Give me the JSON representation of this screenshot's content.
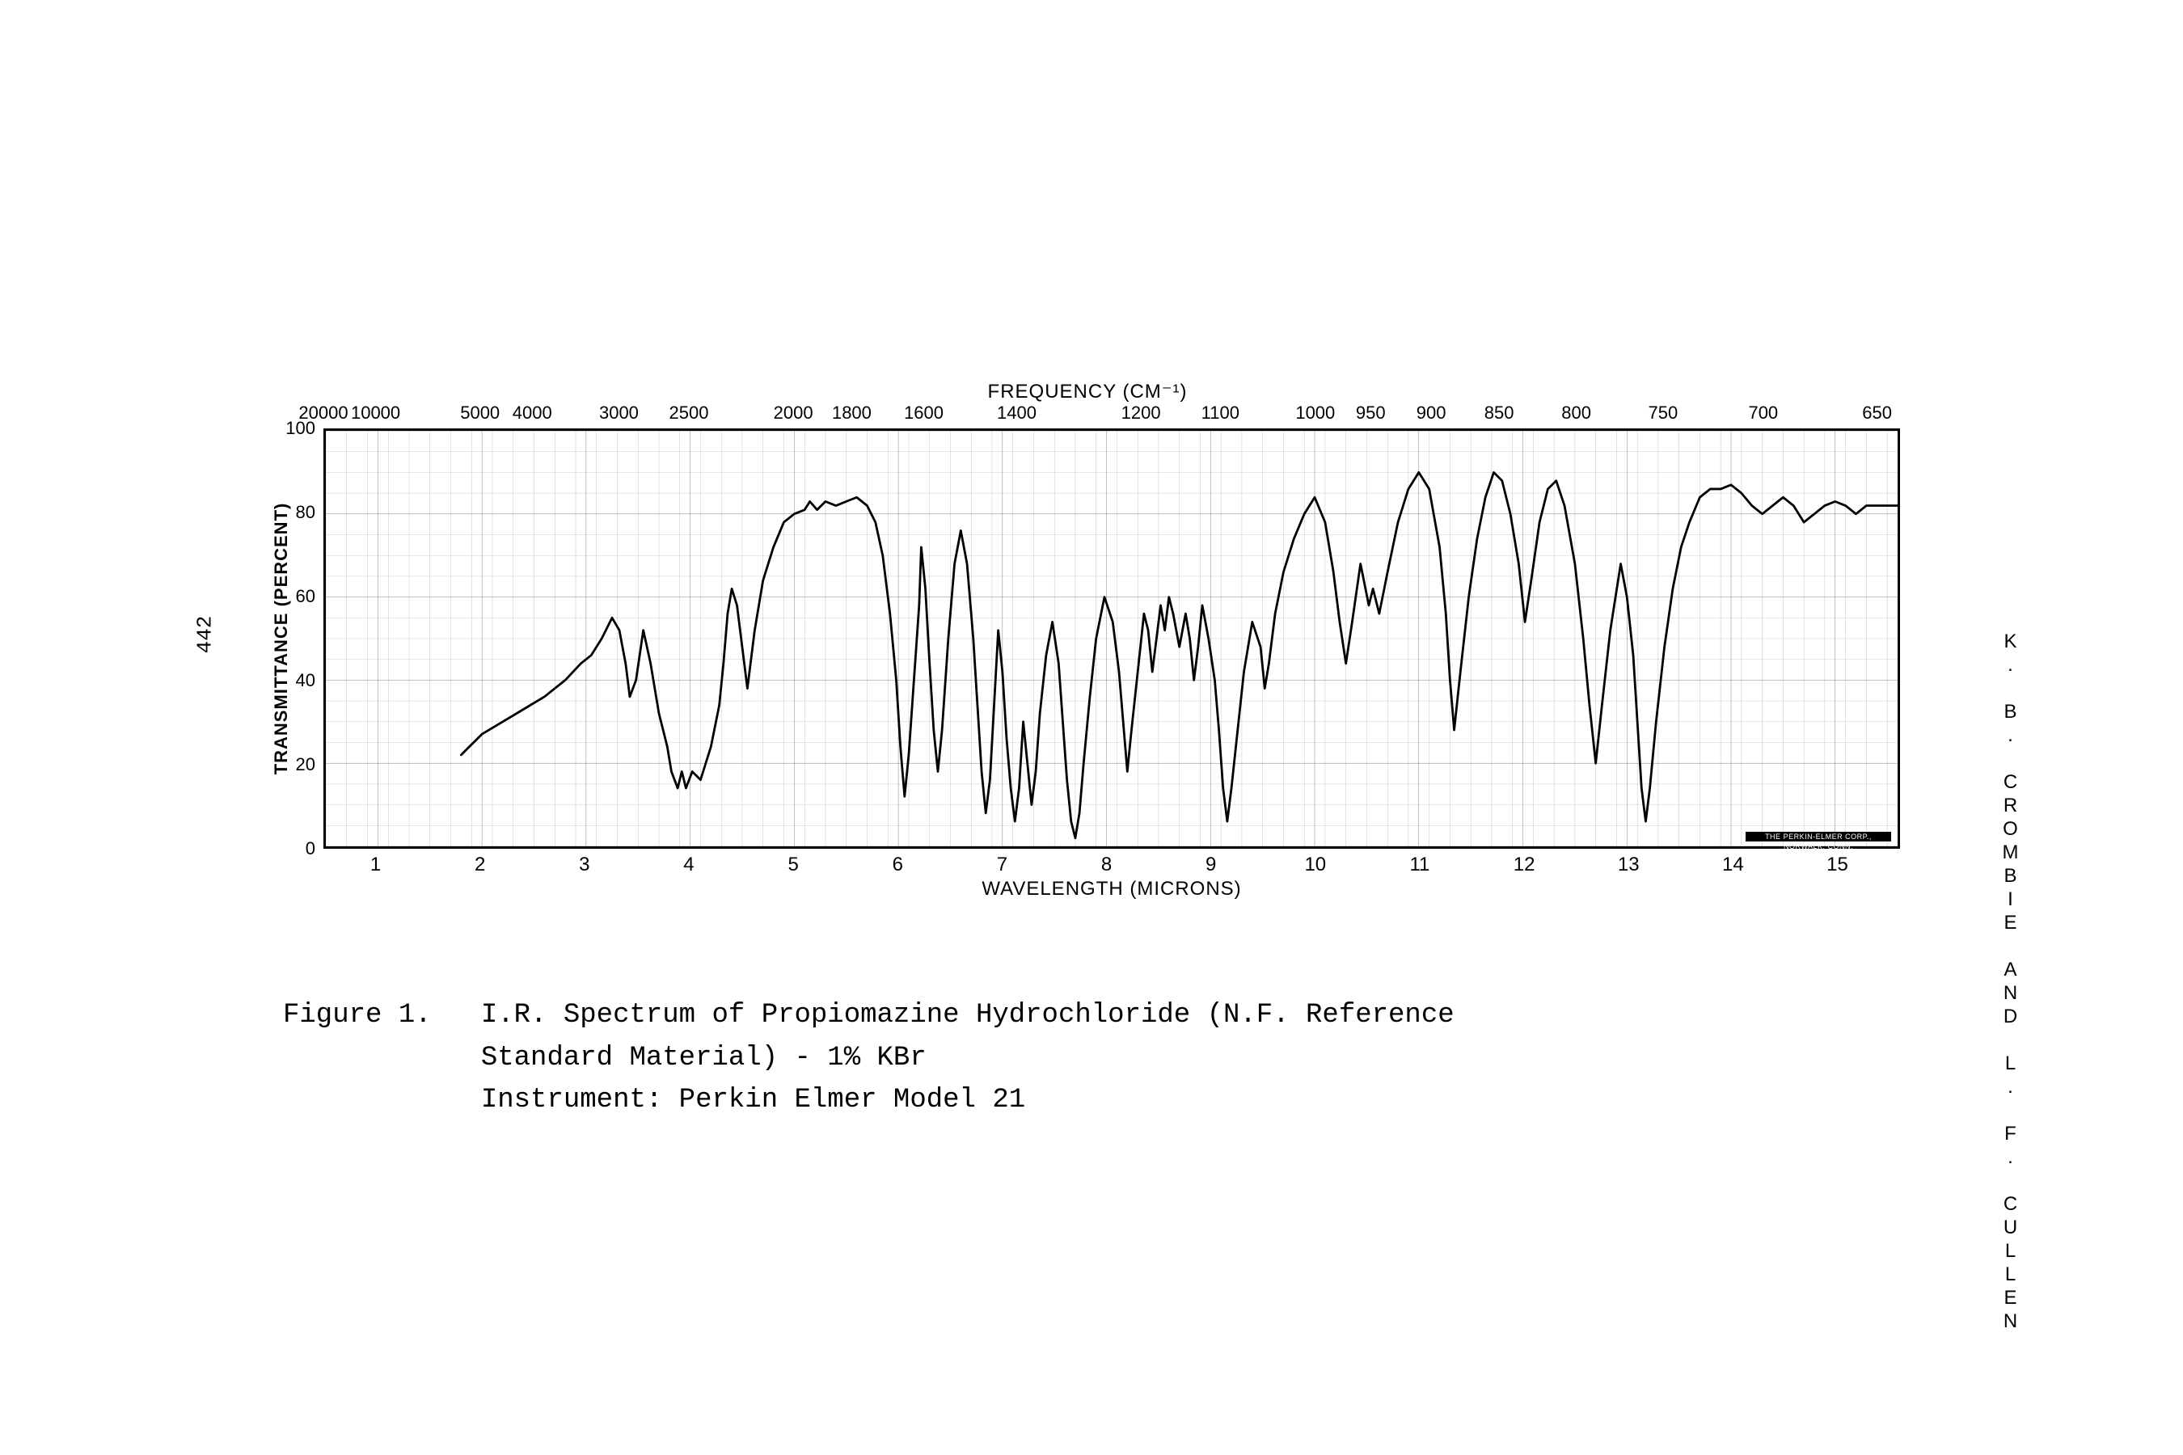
{
  "page_number_left": "442",
  "authors_right": "K. B. CROMBIE AND L. F. CULLEN",
  "caption_lines": [
    "Figure 1.   I.R. Spectrum of Propiomazine Hydrochloride (N.F. Reference",
    "            Standard Material) - 1% KBr",
    "            Instrument: Perkin Elmer Model 21"
  ],
  "caption_fontsize_pt": 26,
  "caption_font": "Courier New",
  "chart": {
    "type": "line",
    "background_color": "#ffffff",
    "line_color": "#000000",
    "line_width": 2.8,
    "grid_color": "#000000",
    "grid_line_width": 1,
    "border_color": "#000000",
    "border_width": 3,
    "top_axis_title": "FREQUENCY (CM⁻¹)",
    "axis_title_fontsize": 24,
    "x_axis_title": "WAVELENGTH (MICRONS)",
    "y_axis_title": "TRANSMITTANCE (PERCENT)",
    "label_fontsize": 22,
    "tick_fontsize": 22,
    "x_range": [
      0.5,
      15.6
    ],
    "y_range": [
      0,
      100
    ],
    "y_ticks": [
      0,
      20,
      40,
      60,
      80,
      100
    ],
    "x_ticks": [
      1,
      2,
      3,
      4,
      5,
      6,
      7,
      8,
      9,
      10,
      11,
      12,
      13,
      14,
      15
    ],
    "x_minor_step": 0.2,
    "top_ticks": [
      {
        "x": 0.5,
        "label": "20000"
      },
      {
        "x": 1.0,
        "label": "10000"
      },
      {
        "x": 2.0,
        "label": "5000"
      },
      {
        "x": 2.5,
        "label": "4000"
      },
      {
        "x": 3.33,
        "label": "3000"
      },
      {
        "x": 4.0,
        "label": "2500"
      },
      {
        "x": 5.0,
        "label": "2000"
      },
      {
        "x": 5.56,
        "label": "1800"
      },
      {
        "x": 6.25,
        "label": "1600"
      },
      {
        "x": 7.14,
        "label": "1400"
      },
      {
        "x": 8.33,
        "label": "1200"
      },
      {
        "x": 9.09,
        "label": "1100"
      },
      {
        "x": 10.0,
        "label": "1000"
      },
      {
        "x": 10.53,
        "label": "950"
      },
      {
        "x": 11.11,
        "label": "900"
      },
      {
        "x": 11.76,
        "label": "850"
      },
      {
        "x": 12.5,
        "label": "800"
      },
      {
        "x": 13.33,
        "label": "750"
      },
      {
        "x": 14.29,
        "label": "700"
      },
      {
        "x": 15.38,
        "label": "650"
      }
    ],
    "instrument_credit": "THE PERKIN-ELMER CORP., NORWALK, CONN.",
    "trace": [
      [
        1.8,
        22
      ],
      [
        2.0,
        27
      ],
      [
        2.2,
        30
      ],
      [
        2.4,
        33
      ],
      [
        2.6,
        36
      ],
      [
        2.8,
        40
      ],
      [
        2.95,
        44
      ],
      [
        3.05,
        46
      ],
      [
        3.15,
        50
      ],
      [
        3.25,
        55
      ],
      [
        3.32,
        52
      ],
      [
        3.38,
        44
      ],
      [
        3.42,
        36
      ],
      [
        3.48,
        40
      ],
      [
        3.55,
        52
      ],
      [
        3.62,
        44
      ],
      [
        3.7,
        32
      ],
      [
        3.78,
        24
      ],
      [
        3.82,
        18
      ],
      [
        3.88,
        14
      ],
      [
        3.92,
        18
      ],
      [
        3.96,
        14
      ],
      [
        4.02,
        18
      ],
      [
        4.1,
        16
      ],
      [
        4.2,
        24
      ],
      [
        4.28,
        34
      ],
      [
        4.32,
        44
      ],
      [
        4.36,
        56
      ],
      [
        4.4,
        62
      ],
      [
        4.45,
        58
      ],
      [
        4.5,
        48
      ],
      [
        4.55,
        38
      ],
      [
        4.62,
        52
      ],
      [
        4.7,
        64
      ],
      [
        4.8,
        72
      ],
      [
        4.9,
        78
      ],
      [
        5.0,
        80
      ],
      [
        5.1,
        81
      ],
      [
        5.15,
        83
      ],
      [
        5.22,
        81
      ],
      [
        5.3,
        83
      ],
      [
        5.4,
        82
      ],
      [
        5.5,
        83
      ],
      [
        5.6,
        84
      ],
      [
        5.7,
        82
      ],
      [
        5.78,
        78
      ],
      [
        5.85,
        70
      ],
      [
        5.92,
        56
      ],
      [
        5.98,
        40
      ],
      [
        6.02,
        24
      ],
      [
        6.06,
        12
      ],
      [
        6.1,
        22
      ],
      [
        6.15,
        40
      ],
      [
        6.2,
        58
      ],
      [
        6.22,
        72
      ],
      [
        6.26,
        62
      ],
      [
        6.3,
        44
      ],
      [
        6.34,
        28
      ],
      [
        6.38,
        18
      ],
      [
        6.42,
        28
      ],
      [
        6.48,
        50
      ],
      [
        6.54,
        68
      ],
      [
        6.6,
        76
      ],
      [
        6.66,
        68
      ],
      [
        6.72,
        50
      ],
      [
        6.76,
        34
      ],
      [
        6.8,
        18
      ],
      [
        6.84,
        8
      ],
      [
        6.88,
        16
      ],
      [
        6.92,
        34
      ],
      [
        6.96,
        52
      ],
      [
        7.0,
        42
      ],
      [
        7.04,
        26
      ],
      [
        7.08,
        14
      ],
      [
        7.12,
        6
      ],
      [
        7.16,
        14
      ],
      [
        7.2,
        30
      ],
      [
        7.24,
        20
      ],
      [
        7.28,
        10
      ],
      [
        7.32,
        18
      ],
      [
        7.36,
        32
      ],
      [
        7.42,
        46
      ],
      [
        7.48,
        54
      ],
      [
        7.54,
        44
      ],
      [
        7.58,
        30
      ],
      [
        7.62,
        16
      ],
      [
        7.66,
        6
      ],
      [
        7.7,
        2
      ],
      [
        7.74,
        8
      ],
      [
        7.78,
        20
      ],
      [
        7.84,
        36
      ],
      [
        7.9,
        50
      ],
      [
        7.98,
        60
      ],
      [
        8.06,
        54
      ],
      [
        8.12,
        42
      ],
      [
        8.16,
        30
      ],
      [
        8.2,
        18
      ],
      [
        8.24,
        28
      ],
      [
        8.3,
        42
      ],
      [
        8.36,
        56
      ],
      [
        8.4,
        52
      ],
      [
        8.44,
        42
      ],
      [
        8.48,
        50
      ],
      [
        8.52,
        58
      ],
      [
        8.56,
        52
      ],
      [
        8.6,
        60
      ],
      [
        8.64,
        56
      ],
      [
        8.7,
        48
      ],
      [
        8.76,
        56
      ],
      [
        8.8,
        50
      ],
      [
        8.84,
        40
      ],
      [
        8.88,
        48
      ],
      [
        8.92,
        58
      ],
      [
        8.98,
        50
      ],
      [
        9.04,
        40
      ],
      [
        9.08,
        28
      ],
      [
        9.12,
        14
      ],
      [
        9.16,
        6
      ],
      [
        9.2,
        14
      ],
      [
        9.26,
        28
      ],
      [
        9.32,
        42
      ],
      [
        9.4,
        54
      ],
      [
        9.48,
        48
      ],
      [
        9.52,
        38
      ],
      [
        9.56,
        44
      ],
      [
        9.62,
        56
      ],
      [
        9.7,
        66
      ],
      [
        9.8,
        74
      ],
      [
        9.9,
        80
      ],
      [
        10.0,
        84
      ],
      [
        10.1,
        78
      ],
      [
        10.18,
        66
      ],
      [
        10.24,
        54
      ],
      [
        10.3,
        44
      ],
      [
        10.36,
        54
      ],
      [
        10.44,
        68
      ],
      [
        10.52,
        58
      ],
      [
        10.56,
        62
      ],
      [
        10.62,
        56
      ],
      [
        10.7,
        66
      ],
      [
        10.8,
        78
      ],
      [
        10.9,
        86
      ],
      [
        11.0,
        90
      ],
      [
        11.1,
        86
      ],
      [
        11.2,
        72
      ],
      [
        11.26,
        56
      ],
      [
        11.3,
        40
      ],
      [
        11.34,
        28
      ],
      [
        11.4,
        42
      ],
      [
        11.48,
        60
      ],
      [
        11.56,
        74
      ],
      [
        11.64,
        84
      ],
      [
        11.72,
        90
      ],
      [
        11.8,
        88
      ],
      [
        11.88,
        80
      ],
      [
        11.96,
        68
      ],
      [
        12.02,
        54
      ],
      [
        12.08,
        64
      ],
      [
        12.16,
        78
      ],
      [
        12.24,
        86
      ],
      [
        12.32,
        88
      ],
      [
        12.4,
        82
      ],
      [
        12.5,
        68
      ],
      [
        12.58,
        50
      ],
      [
        12.64,
        34
      ],
      [
        12.7,
        20
      ],
      [
        12.76,
        34
      ],
      [
        12.84,
        52
      ],
      [
        12.94,
        68
      ],
      [
        13.0,
        60
      ],
      [
        13.06,
        46
      ],
      [
        13.1,
        30
      ],
      [
        13.14,
        14
      ],
      [
        13.18,
        6
      ],
      [
        13.22,
        14
      ],
      [
        13.28,
        30
      ],
      [
        13.36,
        48
      ],
      [
        13.44,
        62
      ],
      [
        13.52,
        72
      ],
      [
        13.6,
        78
      ],
      [
        13.7,
        84
      ],
      [
        13.8,
        86
      ],
      [
        13.9,
        86
      ],
      [
        14.0,
        87
      ],
      [
        14.1,
        85
      ],
      [
        14.2,
        82
      ],
      [
        14.3,
        80
      ],
      [
        14.4,
        82
      ],
      [
        14.5,
        84
      ],
      [
        14.6,
        82
      ],
      [
        14.7,
        78
      ],
      [
        14.8,
        80
      ],
      [
        14.9,
        82
      ],
      [
        15.0,
        83
      ],
      [
        15.1,
        82
      ],
      [
        15.2,
        80
      ],
      [
        15.3,
        82
      ],
      [
        15.4,
        82
      ],
      [
        15.5,
        82
      ],
      [
        15.6,
        82
      ]
    ]
  }
}
